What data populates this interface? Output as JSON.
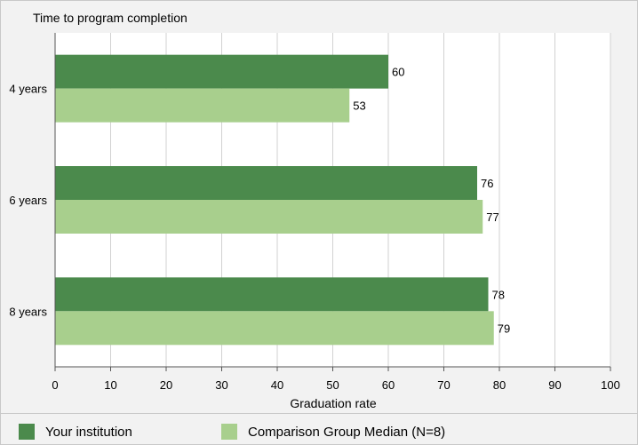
{
  "chart_data": {
    "type": "bar",
    "orientation": "horizontal",
    "title": "Time to program completion",
    "xlabel": "Graduation rate",
    "categories": [
      "4 years",
      "6 years",
      "8 years"
    ],
    "series": [
      {
        "name": "Your institution",
        "values": [
          60,
          76,
          78
        ],
        "color": "#4b8a4c"
      },
      {
        "name": "Comparison Group Median (N=8)",
        "values": [
          53,
          77,
          79
        ],
        "color": "#a8cf8d"
      }
    ],
    "xlim": [
      0,
      100
    ],
    "xticks": [
      0,
      10,
      20,
      30,
      40,
      50,
      60,
      70,
      80,
      90,
      100
    ],
    "grid": true,
    "legend": "bottom"
  }
}
